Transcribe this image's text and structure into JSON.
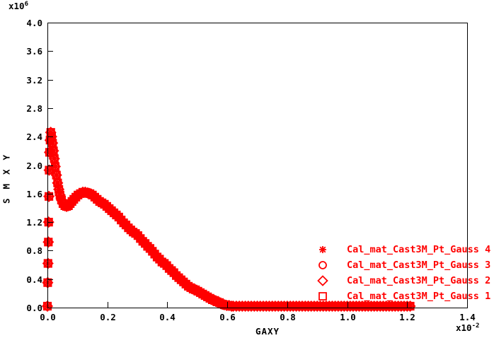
{
  "figure": {
    "background_color": "#ffffff",
    "frame_color": "#000000",
    "curve_color": "#ff0000"
  },
  "chart_data": {
    "type": "scatter",
    "title": "",
    "xlabel": "GAXY",
    "ylabel": "SMXY",
    "x_multiplier": {
      "base": "x10",
      "exp": "-2"
    },
    "y_multiplier": {
      "base": "x10",
      "exp": "6"
    },
    "xlim": [
      0.0,
      1.4
    ],
    "ylim": [
      0.0,
      4.0
    ],
    "x_ticks": [
      "0.0",
      "0.2",
      "0.4",
      "0.6",
      "0.8",
      "1.0",
      "1.2",
      "1.4"
    ],
    "y_ticks": [
      "0.0",
      "0.4",
      "0.8",
      "1.2",
      "1.6",
      "2.0",
      "2.4",
      "2.8",
      "3.2",
      "3.6",
      "4.0"
    ],
    "grid": false,
    "legend_position": "lower-right-inside",
    "marker_color": "#ff0000",
    "series_note": "All four Gauss-point series plot the same curve; markers overlap into a thick red band",
    "series": [
      {
        "label": "Cal_mat_Cast3M_Pt_Gauss 4",
        "marker": "asterisk"
      },
      {
        "label": "Cal_mat_Cast3M_Pt_Gauss 3",
        "marker": "circle"
      },
      {
        "label": "Cal_mat_Cast3M_Pt_Gauss 2",
        "marker": "diamond"
      },
      {
        "label": "Cal_mat_Cast3M_Pt_Gauss 1",
        "marker": "square"
      }
    ],
    "points": [
      [
        0.0,
        0.02
      ],
      [
        0.001,
        0.35
      ],
      [
        0.002,
        0.62
      ],
      [
        0.003,
        0.92
      ],
      [
        0.004,
        1.2
      ],
      [
        0.005,
        1.56
      ],
      [
        0.006,
        1.93
      ],
      [
        0.007,
        2.18
      ],
      [
        0.009,
        2.35
      ],
      [
        0.011,
        2.46
      ],
      [
        0.014,
        2.4
      ],
      [
        0.017,
        2.31
      ],
      [
        0.02,
        2.2
      ],
      [
        0.023,
        2.09
      ],
      [
        0.026,
        1.98
      ],
      [
        0.03,
        1.86
      ],
      [
        0.034,
        1.75
      ],
      [
        0.038,
        1.66
      ],
      [
        0.042,
        1.58
      ],
      [
        0.047,
        1.51
      ],
      [
        0.052,
        1.46
      ],
      [
        0.058,
        1.43
      ],
      [
        0.064,
        1.42
      ],
      [
        0.07,
        1.43
      ],
      [
        0.076,
        1.46
      ],
      [
        0.082,
        1.49
      ],
      [
        0.088,
        1.52
      ],
      [
        0.095,
        1.55
      ],
      [
        0.102,
        1.58
      ],
      [
        0.11,
        1.6
      ],
      [
        0.118,
        1.62
      ],
      [
        0.126,
        1.62
      ],
      [
        0.134,
        1.61
      ],
      [
        0.142,
        1.6
      ],
      [
        0.15,
        1.58
      ],
      [
        0.158,
        1.55
      ],
      [
        0.166,
        1.52
      ],
      [
        0.174,
        1.49
      ],
      [
        0.182,
        1.47
      ],
      [
        0.19,
        1.45
      ],
      [
        0.198,
        1.42
      ],
      [
        0.206,
        1.39
      ],
      [
        0.214,
        1.36
      ],
      [
        0.222,
        1.33
      ],
      [
        0.23,
        1.3
      ],
      [
        0.238,
        1.27
      ],
      [
        0.246,
        1.23
      ],
      [
        0.254,
        1.19
      ],
      [
        0.262,
        1.16
      ],
      [
        0.27,
        1.12
      ],
      [
        0.278,
        1.09
      ],
      [
        0.286,
        1.06
      ],
      [
        0.294,
        1.04
      ],
      [
        0.302,
        1.01
      ],
      [
        0.31,
        0.97
      ],
      [
        0.318,
        0.93
      ],
      [
        0.326,
        0.9
      ],
      [
        0.334,
        0.86
      ],
      [
        0.342,
        0.83
      ],
      [
        0.35,
        0.79
      ],
      [
        0.358,
        0.75
      ],
      [
        0.366,
        0.71
      ],
      [
        0.374,
        0.68
      ],
      [
        0.382,
        0.64
      ],
      [
        0.39,
        0.62
      ],
      [
        0.398,
        0.59
      ],
      [
        0.406,
        0.55
      ],
      [
        0.414,
        0.52
      ],
      [
        0.422,
        0.49
      ],
      [
        0.43,
        0.45
      ],
      [
        0.438,
        0.42
      ],
      [
        0.446,
        0.39
      ],
      [
        0.454,
        0.36
      ],
      [
        0.462,
        0.33
      ],
      [
        0.47,
        0.3
      ],
      [
        0.478,
        0.28
      ],
      [
        0.486,
        0.26
      ],
      [
        0.494,
        0.25
      ],
      [
        0.502,
        0.23
      ],
      [
        0.51,
        0.21
      ],
      [
        0.518,
        0.19
      ],
      [
        0.526,
        0.17
      ],
      [
        0.534,
        0.15
      ],
      [
        0.542,
        0.13
      ],
      [
        0.55,
        0.11
      ],
      [
        0.558,
        0.1
      ],
      [
        0.566,
        0.08
      ],
      [
        0.574,
        0.07
      ],
      [
        0.582,
        0.05
      ],
      [
        0.59,
        0.04
      ],
      [
        0.598,
        0.03
      ],
      [
        0.606,
        0.03
      ],
      [
        0.614,
        0.02
      ],
      [
        0.62,
        0.02
      ],
      [
        0.63,
        0.02
      ],
      [
        0.64,
        0.02
      ],
      [
        0.65,
        0.02
      ],
      [
        0.66,
        0.02
      ],
      [
        0.67,
        0.02
      ],
      [
        0.68,
        0.02
      ],
      [
        0.69,
        0.02
      ],
      [
        0.7,
        0.02
      ],
      [
        0.71,
        0.02
      ],
      [
        0.72,
        0.02
      ],
      [
        0.73,
        0.02
      ],
      [
        0.74,
        0.02
      ],
      [
        0.75,
        0.02
      ],
      [
        0.76,
        0.02
      ],
      [
        0.77,
        0.02
      ],
      [
        0.78,
        0.02
      ],
      [
        0.79,
        0.02
      ],
      [
        0.8,
        0.02
      ],
      [
        0.81,
        0.02
      ],
      [
        0.82,
        0.02
      ],
      [
        0.83,
        0.02
      ],
      [
        0.84,
        0.02
      ],
      [
        0.85,
        0.02
      ],
      [
        0.86,
        0.02
      ],
      [
        0.87,
        0.02
      ],
      [
        0.88,
        0.02
      ],
      [
        0.89,
        0.02
      ],
      [
        0.9,
        0.02
      ],
      [
        0.91,
        0.02
      ],
      [
        0.92,
        0.02
      ],
      [
        0.93,
        0.02
      ],
      [
        0.94,
        0.02
      ],
      [
        0.95,
        0.02
      ],
      [
        0.96,
        0.02
      ],
      [
        0.97,
        0.02
      ],
      [
        0.98,
        0.02
      ],
      [
        0.99,
        0.02
      ],
      [
        1.0,
        0.02
      ],
      [
        1.01,
        0.02
      ],
      [
        1.02,
        0.02
      ],
      [
        1.03,
        0.02
      ],
      [
        1.04,
        0.02
      ],
      [
        1.05,
        0.02
      ],
      [
        1.06,
        0.02
      ],
      [
        1.07,
        0.02
      ],
      [
        1.08,
        0.02
      ],
      [
        1.09,
        0.02
      ],
      [
        1.1,
        0.02
      ],
      [
        1.11,
        0.02
      ],
      [
        1.12,
        0.02
      ],
      [
        1.13,
        0.02
      ],
      [
        1.14,
        0.02
      ],
      [
        1.15,
        0.02
      ],
      [
        1.16,
        0.02
      ],
      [
        1.17,
        0.02
      ],
      [
        1.18,
        0.02
      ],
      [
        1.19,
        0.02
      ],
      [
        1.2,
        0.02
      ],
      [
        1.21,
        0.02
      ]
    ]
  }
}
